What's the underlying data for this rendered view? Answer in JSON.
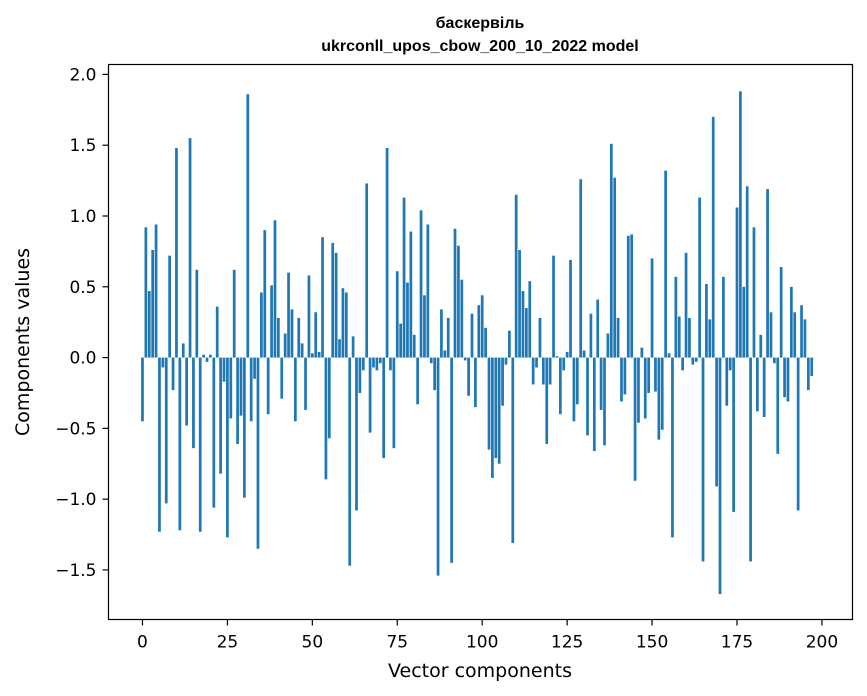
{
  "chart_data": {
    "type": "bar",
    "title": "баскервіль",
    "subtitle": "ukrconll_upos_cbow_200_10_2022 model",
    "xlabel": "Vector components",
    "ylabel": "Components values",
    "xlim": [
      -10,
      209
    ],
    "ylim": [
      -1.85,
      2.07
    ],
    "xticks": [
      0,
      25,
      50,
      75,
      100,
      125,
      150,
      175,
      200
    ],
    "xtick_labels": [
      "0",
      "25",
      "50",
      "75",
      "100",
      "125",
      "150",
      "175",
      "200"
    ],
    "yticks": [
      2.0,
      1.5,
      1.0,
      0.5,
      0.0,
      -0.5,
      -1.0,
      -1.5
    ],
    "ytick_labels": [
      "2.0",
      "1.5",
      "1.0",
      "0.5",
      "0.0",
      "−0.5",
      "−1.0",
      "−1.5"
    ],
    "grid": false,
    "bar_color": "#1f77b4",
    "values": [
      -0.45,
      0.92,
      0.47,
      0.76,
      0.94,
      -1.23,
      -0.07,
      -1.03,
      0.72,
      -0.23,
      1.48,
      -1.22,
      0.1,
      -0.48,
      1.55,
      -0.64,
      0.62,
      -1.23,
      0.02,
      -0.03,
      0.02,
      -1.06,
      0.36,
      -0.82,
      -0.17,
      -1.27,
      -0.43,
      0.62,
      -0.61,
      -0.41,
      -0.99,
      1.86,
      -0.45,
      -0.15,
      -1.35,
      0.46,
      0.9,
      -0.4,
      0.51,
      0.97,
      0.28,
      -0.29,
      0.17,
      0.6,
      0.34,
      -0.45,
      0.28,
      0.1,
      -0.37,
      0.58,
      0.03,
      0.32,
      0.04,
      0.85,
      -0.86,
      -0.57,
      0.81,
      0.74,
      0.13,
      0.49,
      0.46,
      -1.47,
      0.15,
      -1.08,
      -0.25,
      -0.09,
      1.23,
      -0.53,
      -0.07,
      -0.09,
      -0.04,
      -0.71,
      1.48,
      -0.09,
      -0.64,
      0.61,
      0.24,
      1.13,
      0.53,
      0.89,
      0.16,
      -0.33,
      1.04,
      0.44,
      0.94,
      -0.04,
      -0.23,
      -1.54,
      0.34,
      0.05,
      0.28,
      -1.45,
      0.91,
      0.79,
      0.55,
      -0.02,
      -0.27,
      0.31,
      -0.35,
      0.37,
      0.44,
      0.21,
      -0.65,
      -0.85,
      -0.71,
      -0.75,
      -0.34,
      -0.05,
      0.19,
      -1.31,
      1.15,
      0.76,
      0.47,
      0.35,
      0.54,
      -0.19,
      -0.07,
      0.28,
      -0.19,
      -0.61,
      -0.19,
      0.72,
      0.01,
      -0.4,
      -0.09,
      0.04,
      0.69,
      -0.45,
      -0.33,
      1.26,
      0.05,
      -0.55,
      0.31,
      -0.66,
      0.41,
      -0.37,
      -0.62,
      0.17,
      1.51,
      1.27,
      0.28,
      -0.31,
      -0.26,
      0.86,
      0.87,
      -0.87,
      -0.46,
      0.07,
      -0.43,
      -0.25,
      0.7,
      -0.24,
      -0.58,
      -0.51,
      1.32,
      0.03,
      -1.27,
      0.57,
      0.29,
      -0.09,
      0.74,
      0.28,
      -0.05,
      -0.03,
      1.13,
      -1.44,
      0.52,
      0.27,
      1.7,
      -0.91,
      -1.67,
      0.57,
      -0.34,
      -0.09,
      -1.09,
      1.06,
      1.88,
      0.5,
      1.21,
      -1.44,
      0.92,
      -0.38,
      0.16,
      -0.42,
      1.19,
      0.32,
      -0.04,
      -0.68,
      0.64,
      -0.28,
      -0.31,
      0.5,
      0.32,
      -1.08,
      0.37,
      0.27,
      -0.23,
      -0.13
    ]
  }
}
